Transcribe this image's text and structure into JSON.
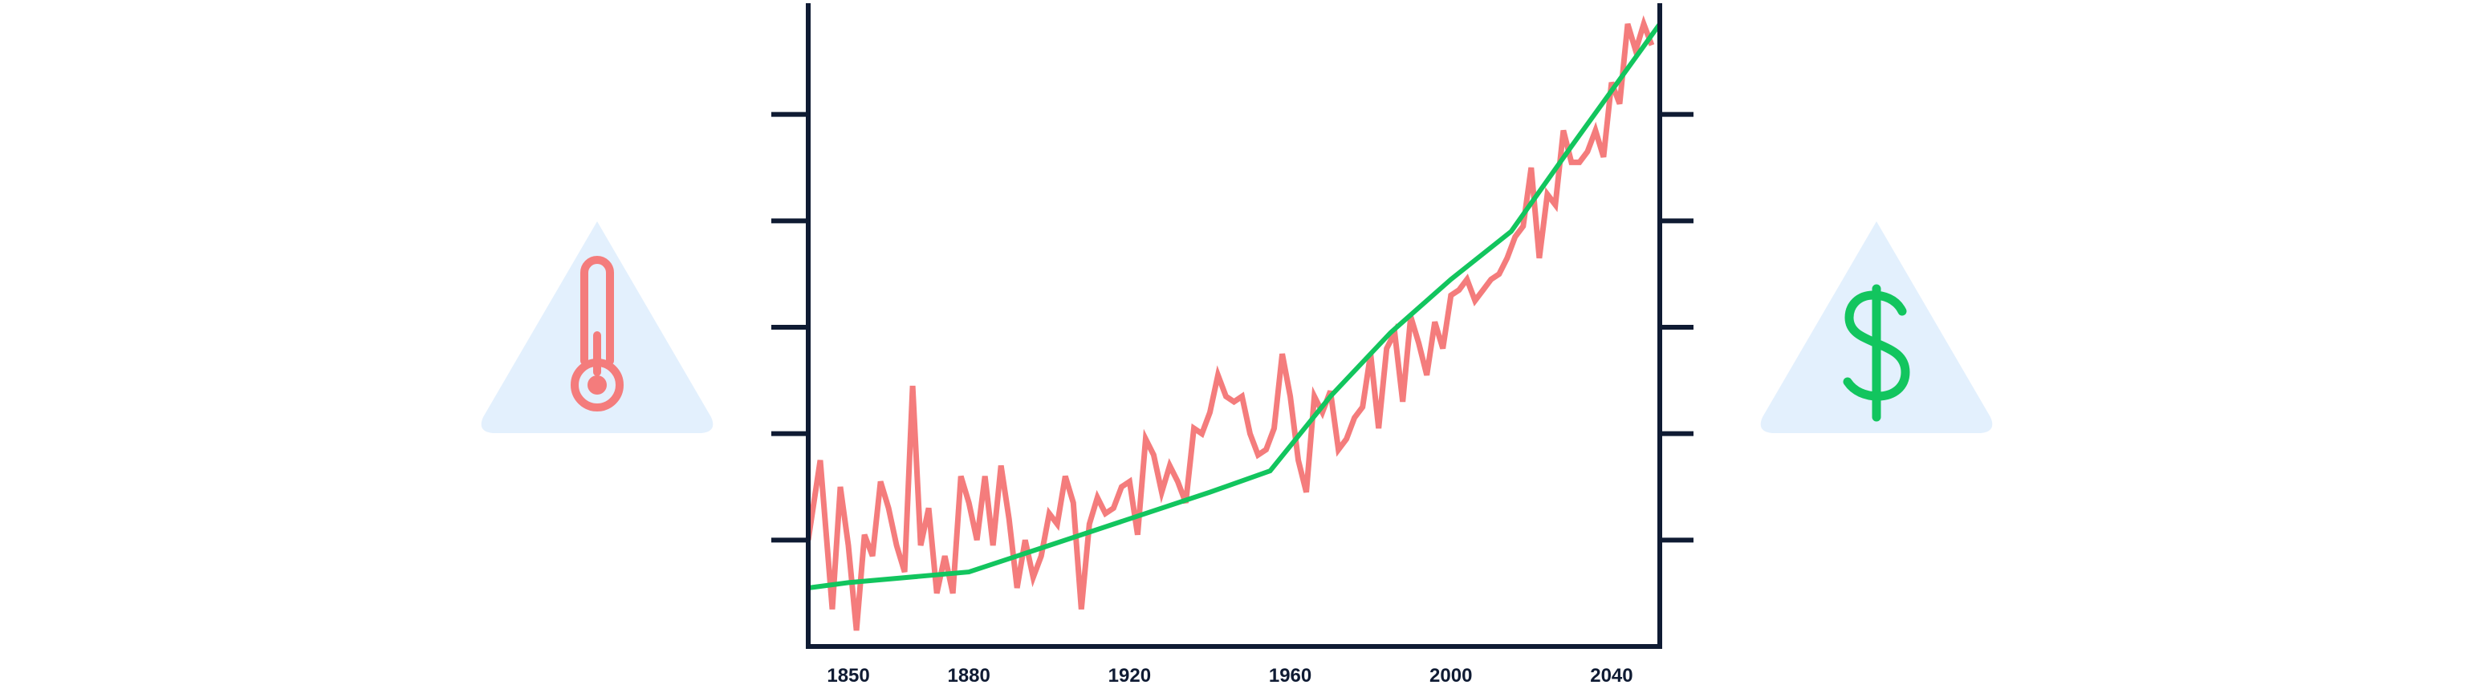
{
  "icons": {
    "left": "thermometer-icon",
    "right": "dollar-icon"
  },
  "colors": {
    "axis": "#0f1b33",
    "temperature_line": "#f47c7c",
    "cost_line": "#12c55e",
    "warning_bg": "#e3f0fd",
    "thermometer": "#f47c7c",
    "dollar": "#12c55e"
  },
  "chart_data": {
    "type": "line",
    "title": "",
    "xlabel": "",
    "ylabel": "",
    "xlim": [
      1840,
      2052
    ],
    "ylim": [
      0,
      6
    ],
    "x_ticks": [
      1850,
      1880,
      1920,
      1960,
      2000,
      2040
    ],
    "x_tick_labels": [
      "1850",
      "1880",
      "1920",
      "1960",
      "2000",
      "2040"
    ],
    "y_ticks": [
      1,
      2,
      3,
      4,
      5
    ],
    "right_y_ticks": [
      1,
      2,
      3,
      4,
      5
    ],
    "grid": false,
    "legend": "none",
    "series": [
      {
        "color": "#f47c7c",
        "x": [
          1840,
          1843,
          1846,
          1848,
          1850,
          1852,
          1854,
          1856,
          1858,
          1860,
          1862,
          1864,
          1866,
          1868,
          1870,
          1872,
          1874,
          1876,
          1878,
          1880,
          1882,
          1884,
          1886,
          1888,
          1890,
          1892,
          1894,
          1896,
          1898,
          1900,
          1902,
          1904,
          1906,
          1908,
          1910,
          1912,
          1914,
          1916,
          1918,
          1920,
          1922,
          1924,
          1926,
          1928,
          1930,
          1932,
          1934,
          1936,
          1938,
          1940,
          1942,
          1944,
          1946,
          1948,
          1950,
          1952,
          1954,
          1956,
          1958,
          1960,
          1962,
          1964,
          1966,
          1968,
          1970,
          1972,
          1974,
          1976,
          1978,
          1980,
          1982,
          1984,
          1986,
          1988,
          1990,
          1992,
          1994,
          1996,
          1998,
          2000,
          2002,
          2004,
          2006,
          2008,
          2010,
          2012,
          2014,
          2016,
          2018,
          2020,
          2022,
          2024,
          2026,
          2028,
          2030,
          2032,
          2034,
          2036,
          2038,
          2040,
          2042,
          2044,
          2046,
          2048,
          2050
        ],
        "y": [
          1.0,
          1.75,
          0.35,
          1.5,
          0.95,
          0.15,
          1.05,
          0.85,
          1.55,
          1.3,
          0.95,
          0.7,
          2.45,
          0.95,
          1.3,
          0.5,
          0.85,
          0.5,
          1.6,
          1.35,
          1.0,
          1.6,
          0.95,
          1.7,
          1.2,
          0.55,
          1.0,
          0.65,
          0.85,
          1.25,
          1.15,
          1.6,
          1.35,
          0.35,
          1.15,
          1.4,
          1.25,
          1.3,
          1.5,
          1.55,
          1.05,
          1.95,
          1.8,
          1.45,
          1.7,
          1.55,
          1.35,
          2.05,
          2.0,
          2.2,
          2.55,
          2.35,
          2.3,
          2.35,
          2.0,
          1.8,
          1.85,
          2.05,
          2.75,
          2.35,
          1.75,
          1.45,
          2.35,
          2.2,
          2.4,
          1.85,
          1.95,
          2.15,
          2.25,
          2.75,
          2.05,
          2.8,
          2.95,
          2.3,
          3.1,
          2.85,
          2.55,
          3.05,
          2.8,
          3.3,
          3.35,
          3.45,
          3.25,
          3.35,
          3.45,
          3.5,
          3.65,
          3.85,
          3.95,
          4.5,
          3.65,
          4.25,
          4.15,
          4.85,
          4.55,
          4.55,
          4.65,
          4.85,
          4.6,
          5.3,
          5.1,
          5.85,
          5.6,
          5.85,
          5.65
        ],
        "values_note": ""
      },
      {
        "color": "#12c55e",
        "x": [
          1840,
          1850,
          1880,
          1900,
          1920,
          1940,
          1955,
          1970,
          1985,
          2000,
          2015,
          2030,
          2052
        ],
        "y": [
          0.55,
          0.6,
          0.7,
          0.95,
          1.2,
          1.45,
          1.65,
          2.35,
          2.95,
          3.45,
          3.9,
          4.7,
          5.85
        ]
      }
    ]
  }
}
